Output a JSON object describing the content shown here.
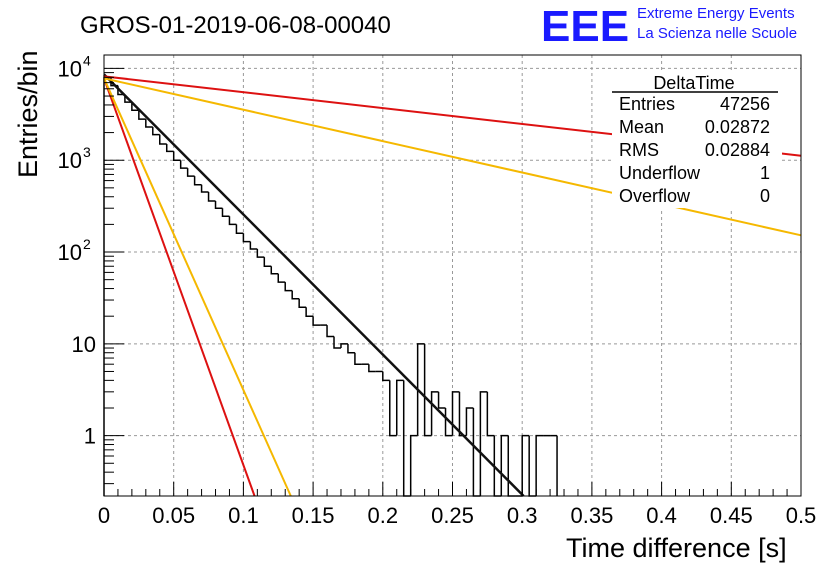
{
  "title": "GROS-01-2019-06-08-00040",
  "logo": {
    "text": "EEE",
    "line1": "Extreme Energy Events",
    "line2": "La Scienza nelle Scuole",
    "color": "#1a1aff"
  },
  "stats": {
    "name": "DeltaTime",
    "rows": [
      {
        "label": "Entries",
        "value": "47256"
      },
      {
        "label": "Mean",
        "value": "0.02872"
      },
      {
        "label": "RMS",
        "value": "0.02884"
      },
      {
        "label": "Underflow",
        "value": "1"
      },
      {
        "label": "Overflow",
        "value": "0"
      }
    ]
  },
  "chart_data": {
    "type": "histogram",
    "title": "GROS-01-2019-06-08-00040",
    "xlabel": "Time difference [s]",
    "ylabel": "Entries/bin",
    "xlim": [
      0,
      0.5
    ],
    "ylim": [
      0.22,
      14000
    ],
    "yscale": "log",
    "grid": true,
    "x_ticks": [
      "0",
      "0.05",
      "0.1",
      "0.15",
      "0.2",
      "0.25",
      "0.3",
      "0.35",
      "0.4",
      "0.45",
      "0.5"
    ],
    "y_ticks": [
      {
        "value": 10000,
        "base": "10",
        "exp": "4"
      },
      {
        "value": 1000,
        "base": "10",
        "exp": "3"
      },
      {
        "value": 100,
        "base": "10",
        "exp": "2"
      },
      {
        "value": 10,
        "base": "10",
        "exp": ""
      },
      {
        "value": 1,
        "base": "1",
        "exp": ""
      }
    ],
    "bin_width": 0.005,
    "histogram": [
      {
        "x": 0.0,
        "y": 8000
      },
      {
        "x": 0.005,
        "y": 6500
      },
      {
        "x": 0.01,
        "y": 5200
      },
      {
        "x": 0.015,
        "y": 4300
      },
      {
        "x": 0.02,
        "y": 3500
      },
      {
        "x": 0.025,
        "y": 2800
      },
      {
        "x": 0.03,
        "y": 2300
      },
      {
        "x": 0.035,
        "y": 1900
      },
      {
        "x": 0.04,
        "y": 1500
      },
      {
        "x": 0.045,
        "y": 1250
      },
      {
        "x": 0.05,
        "y": 1000
      },
      {
        "x": 0.055,
        "y": 820
      },
      {
        "x": 0.06,
        "y": 670
      },
      {
        "x": 0.065,
        "y": 540
      },
      {
        "x": 0.07,
        "y": 450
      },
      {
        "x": 0.075,
        "y": 360
      },
      {
        "x": 0.08,
        "y": 300
      },
      {
        "x": 0.085,
        "y": 245
      },
      {
        "x": 0.09,
        "y": 200
      },
      {
        "x": 0.095,
        "y": 160
      },
      {
        "x": 0.1,
        "y": 130
      },
      {
        "x": 0.105,
        "y": 108
      },
      {
        "x": 0.11,
        "y": 88
      },
      {
        "x": 0.115,
        "y": 70
      },
      {
        "x": 0.12,
        "y": 58
      },
      {
        "x": 0.125,
        "y": 47
      },
      {
        "x": 0.13,
        "y": 38
      },
      {
        "x": 0.135,
        "y": 31
      },
      {
        "x": 0.14,
        "y": 25
      },
      {
        "x": 0.145,
        "y": 20
      },
      {
        "x": 0.15,
        "y": 16
      },
      {
        "x": 0.155,
        "y": 16
      },
      {
        "x": 0.16,
        "y": 12
      },
      {
        "x": 0.165,
        "y": 9
      },
      {
        "x": 0.17,
        "y": 10
      },
      {
        "x": 0.175,
        "y": 8
      },
      {
        "x": 0.18,
        "y": 6
      },
      {
        "x": 0.185,
        "y": 6
      },
      {
        "x": 0.19,
        "y": 5
      },
      {
        "x": 0.195,
        "y": 5
      },
      {
        "x": 0.2,
        "y": 4
      },
      {
        "x": 0.205,
        "y": 1
      },
      {
        "x": 0.21,
        "y": 4
      },
      {
        "x": 0.215,
        "y": 0.2
      },
      {
        "x": 0.22,
        "y": 1
      },
      {
        "x": 0.225,
        "y": 10
      },
      {
        "x": 0.23,
        "y": 1
      },
      {
        "x": 0.235,
        "y": 3
      },
      {
        "x": 0.24,
        "y": 2
      },
      {
        "x": 0.245,
        "y": 1
      },
      {
        "x": 0.25,
        "y": 3
      },
      {
        "x": 0.255,
        "y": 1
      },
      {
        "x": 0.26,
        "y": 2
      },
      {
        "x": 0.265,
        "y": 0.2
      },
      {
        "x": 0.27,
        "y": 3
      },
      {
        "x": 0.275,
        "y": 1
      },
      {
        "x": 0.28,
        "y": 0.2
      },
      {
        "x": 0.285,
        "y": 1
      },
      {
        "x": 0.29,
        "y": 0.2
      },
      {
        "x": 0.295,
        "y": 0.2
      },
      {
        "x": 0.3,
        "y": 1
      },
      {
        "x": 0.305,
        "y": 0.2
      },
      {
        "x": 0.31,
        "y": 1
      },
      {
        "x": 0.315,
        "y": 1
      },
      {
        "x": 0.32,
        "y": 1
      }
    ],
    "curves": [
      {
        "color": "#111111",
        "x": [
          0,
          0.301
        ],
        "y": [
          8600,
          0.22
        ]
      },
      {
        "color": "#dd1111",
        "x": [
          0,
          0.5
        ],
        "y": [
          8200,
          1120
        ]
      },
      {
        "color": "#f5b800",
        "x": [
          0,
          0.5
        ],
        "y": [
          7800,
          152
        ]
      },
      {
        "color": "#dd1111",
        "x": [
          0,
          0.108
        ],
        "y": [
          7800,
          0.22
        ]
      },
      {
        "color": "#f5b800",
        "x": [
          0,
          0.134
        ],
        "y": [
          7800,
          0.22
        ]
      }
    ]
  }
}
